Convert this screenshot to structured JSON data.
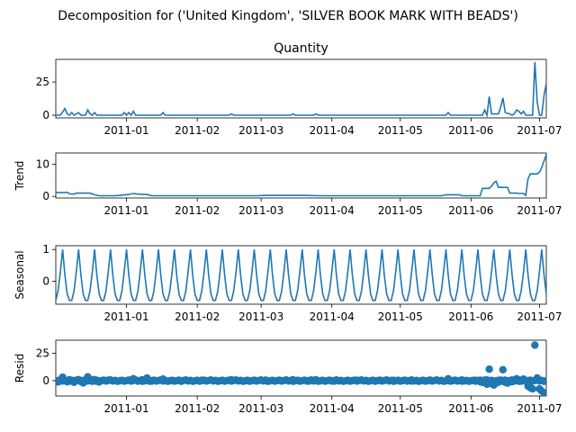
{
  "suptitle": "Decomposition for ('United Kingdom', 'SILVER BOOK MARK WITH BEADS')",
  "line_color": "#1f77b4",
  "x_ticks": [
    "2011-01",
    "2011-02",
    "2011-03",
    "2011-04",
    "2011-05",
    "2011-06",
    "2011-07"
  ],
  "chart_data": [
    {
      "type": "line",
      "title": "Quantity",
      "ylabel": "",
      "yticks": [
        "0",
        "25"
      ],
      "ylim": [
        -2,
        42
      ],
      "x_range": [
        "2010-12-01",
        "2011-07-04"
      ],
      "points": [
        [
          "2010-12-01",
          0
        ],
        [
          "2010-12-03",
          0
        ],
        [
          "2010-12-05",
          5
        ],
        [
          "2010-12-06",
          1
        ],
        [
          "2010-12-07",
          0
        ],
        [
          "2010-12-08",
          2
        ],
        [
          "2010-12-09",
          0
        ],
        [
          "2010-12-11",
          2
        ],
        [
          "2010-12-12",
          0
        ],
        [
          "2010-12-14",
          0
        ],
        [
          "2010-12-15",
          4
        ],
        [
          "2010-12-16",
          1
        ],
        [
          "2010-12-17",
          0
        ],
        [
          "2010-12-18",
          2
        ],
        [
          "2010-12-19",
          0
        ],
        [
          "2010-12-30",
          0
        ],
        [
          "2010-12-31",
          2
        ],
        [
          "2011-01-01",
          0
        ],
        [
          "2011-01-02",
          2
        ],
        [
          "2011-01-03",
          0
        ],
        [
          "2011-01-04",
          3
        ],
        [
          "2011-01-05",
          0
        ],
        [
          "2011-01-16",
          0
        ],
        [
          "2011-01-17",
          2
        ],
        [
          "2011-01-18",
          0
        ],
        [
          "2011-02-15",
          0
        ],
        [
          "2011-02-16",
          1
        ],
        [
          "2011-02-17",
          0
        ],
        [
          "2011-03-14",
          0
        ],
        [
          "2011-03-15",
          1
        ],
        [
          "2011-03-16",
          0
        ],
        [
          "2011-03-24",
          0
        ],
        [
          "2011-03-25",
          1
        ],
        [
          "2011-03-26",
          0
        ],
        [
          "2011-05-21",
          0
        ],
        [
          "2011-05-22",
          2
        ],
        [
          "2011-05-23",
          0
        ],
        [
          "2011-06-06",
          0
        ],
        [
          "2011-06-07",
          4
        ],
        [
          "2011-06-08",
          0
        ],
        [
          "2011-06-09",
          14
        ],
        [
          "2011-06-10",
          1
        ],
        [
          "2011-06-13",
          1
        ],
        [
          "2011-06-14",
          6
        ],
        [
          "2011-06-15",
          13
        ],
        [
          "2011-06-16",
          2
        ],
        [
          "2011-06-18",
          1
        ],
        [
          "2011-06-19",
          0
        ],
        [
          "2011-06-20",
          1
        ],
        [
          "2011-06-21",
          4
        ],
        [
          "2011-06-22",
          3
        ],
        [
          "2011-06-23",
          1
        ],
        [
          "2011-06-24",
          3
        ],
        [
          "2011-06-25",
          0
        ],
        [
          "2011-06-28",
          0
        ],
        [
          "2011-06-29",
          40
        ],
        [
          "2011-06-30",
          10
        ],
        [
          "2011-07-01",
          0
        ],
        [
          "2011-07-02",
          0
        ],
        [
          "2011-07-03",
          15
        ],
        [
          "2011-07-04",
          24
        ]
      ]
    },
    {
      "type": "line",
      "title": "",
      "ylabel": "Trend",
      "yticks": [
        "0",
        "10"
      ],
      "ylim": [
        -0.5,
        13.5
      ],
      "x_range": [
        "2010-12-01",
        "2011-07-04"
      ],
      "points": [
        [
          "2010-12-01",
          1.2
        ],
        [
          "2010-12-05",
          1.2
        ],
        [
          "2010-12-06",
          1.3
        ],
        [
          "2010-12-07",
          0.8
        ],
        [
          "2010-12-09",
          0.7
        ],
        [
          "2010-12-10",
          1.0
        ],
        [
          "2010-12-16",
          1.0
        ],
        [
          "2010-12-18",
          0.5
        ],
        [
          "2010-12-20",
          0.2
        ],
        [
          "2010-12-27",
          0.2
        ],
        [
          "2010-12-30",
          0.4
        ],
        [
          "2011-01-02",
          0.6
        ],
        [
          "2011-01-04",
          0.9
        ],
        [
          "2011-01-06",
          0.7
        ],
        [
          "2011-01-10",
          0.6
        ],
        [
          "2011-01-12",
          0.2
        ],
        [
          "2011-01-19",
          0.2
        ],
        [
          "2011-02-27",
          0.2
        ],
        [
          "2011-03-03",
          0.3
        ],
        [
          "2011-03-20",
          0.3
        ],
        [
          "2011-03-27",
          0.2
        ],
        [
          "2011-05-19",
          0.2
        ],
        [
          "2011-05-21",
          0.5
        ],
        [
          "2011-05-27",
          0.5
        ],
        [
          "2011-05-28",
          0.2
        ],
        [
          "2011-06-05",
          0.2
        ],
        [
          "2011-06-06",
          2.5
        ],
        [
          "2011-06-09",
          2.5
        ],
        [
          "2011-06-10",
          3.2
        ],
        [
          "2011-06-11",
          4.2
        ],
        [
          "2011-06-12",
          4.7
        ],
        [
          "2011-06-13",
          2.8
        ],
        [
          "2011-06-17",
          2.8
        ],
        [
          "2011-06-18",
          1.0
        ],
        [
          "2011-06-21",
          1.0
        ],
        [
          "2011-06-22",
          0.9
        ],
        [
          "2011-06-24",
          0.9
        ],
        [
          "2011-06-25",
          0.3
        ],
        [
          "2011-06-26",
          5.5
        ],
        [
          "2011-06-27",
          7.0
        ],
        [
          "2011-06-30",
          7.0
        ],
        [
          "2011-07-01",
          7.5
        ],
        [
          "2011-07-02",
          9.0
        ],
        [
          "2011-07-04",
          13.0
        ]
      ]
    },
    {
      "type": "line",
      "title": "",
      "ylabel": "Seasonal",
      "yticks": [
        "0",
        "1"
      ],
      "ylim": [
        -0.72,
        1.12
      ],
      "x_range": [
        "2010-12-01",
        "2011-07-04"
      ],
      "period_days": 7,
      "cycle_start": "2010-12-01",
      "cycle_values": [
        -0.6,
        -0.3,
        0.3,
        1.0,
        0.2,
        -0.4,
        -0.6
      ]
    },
    {
      "type": "scatter",
      "title": "",
      "ylabel": "Resid",
      "yticks": [
        "0",
        "25"
      ],
      "ylim": [
        -14,
        37
      ],
      "x_range": [
        "2010-12-01",
        "2011-07-04"
      ],
      "zero_line": true,
      "points": [
        [
          "2010-12-01",
          -0.5
        ],
        [
          "2010-12-02",
          -1.2
        ],
        [
          "2010-12-03",
          -0.2
        ],
        [
          "2010-12-04",
          3.2
        ],
        [
          "2010-12-05",
          0.5
        ],
        [
          "2010-12-06",
          -1.0
        ],
        [
          "2010-12-07",
          0.8
        ],
        [
          "2010-12-08",
          -0.5
        ],
        [
          "2010-12-09",
          -1.5
        ],
        [
          "2010-12-10",
          0.4
        ],
        [
          "2010-12-11",
          1.0
        ],
        [
          "2010-12-12",
          -0.8
        ],
        [
          "2010-12-13",
          -2.0
        ],
        [
          "2010-12-14",
          -0.6
        ],
        [
          "2010-12-15",
          3.5
        ],
        [
          "2010-12-16",
          1.2
        ],
        [
          "2010-12-17",
          -0.4
        ],
        [
          "2010-12-18",
          0.9
        ],
        [
          "2010-12-19",
          -0.6
        ],
        [
          "2010-12-20",
          -1.2
        ],
        [
          "2010-12-24",
          0.5
        ],
        [
          "2010-12-28",
          -0.5
        ],
        [
          "2011-01-02",
          0.5
        ],
        [
          "2011-01-04",
          1.8
        ],
        [
          "2011-01-06",
          -0.5
        ],
        [
          "2011-01-08",
          0.8
        ],
        [
          "2011-01-10",
          2.5
        ],
        [
          "2011-01-12",
          -0.5
        ],
        [
          "2011-01-17",
          1.5
        ],
        [
          "2011-01-25",
          -0.6
        ],
        [
          "2011-02-03",
          0.4
        ],
        [
          "2011-02-10",
          -0.4
        ],
        [
          "2011-02-16",
          0.8
        ],
        [
          "2011-02-24",
          -0.5
        ],
        [
          "2011-03-03",
          0.5
        ],
        [
          "2011-03-10",
          -0.3
        ],
        [
          "2011-03-15",
          0.8
        ],
        [
          "2011-03-22",
          -0.4
        ],
        [
          "2011-03-25",
          0.8
        ],
        [
          "2011-04-02",
          -0.5
        ],
        [
          "2011-04-12",
          0.3
        ],
        [
          "2011-04-20",
          -0.4
        ],
        [
          "2011-04-28",
          0.3
        ],
        [
          "2011-05-06",
          -0.3
        ],
        [
          "2011-05-14",
          0.4
        ],
        [
          "2011-05-22",
          1.8
        ],
        [
          "2011-05-28",
          -0.5
        ],
        [
          "2011-06-03",
          0.3
        ],
        [
          "2011-06-05",
          -1.0
        ],
        [
          "2011-06-06",
          -1.5
        ],
        [
          "2011-06-07",
          0.5
        ],
        [
          "2011-06-08",
          -3.2
        ],
        [
          "2011-06-09",
          10.5
        ],
        [
          "2011-06-10",
          -2.5
        ],
        [
          "2011-06-11",
          -4.0
        ],
        [
          "2011-06-12",
          -2.0
        ],
        [
          "2011-06-13",
          -1.5
        ],
        [
          "2011-06-14",
          0.5
        ],
        [
          "2011-06-15",
          10.0
        ],
        [
          "2011-06-16",
          -1.5
        ],
        [
          "2011-06-17",
          -2.2
        ],
        [
          "2011-06-18",
          -0.5
        ],
        [
          "2011-06-19",
          -1.0
        ],
        [
          "2011-06-20",
          0.2
        ],
        [
          "2011-06-21",
          1.8
        ],
        [
          "2011-06-22",
          0.5
        ],
        [
          "2011-06-23",
          -0.5
        ],
        [
          "2011-06-24",
          1.5
        ],
        [
          "2011-06-25",
          -0.6
        ],
        [
          "2011-06-26",
          -5.0
        ],
        [
          "2011-06-27",
          -6.5
        ],
        [
          "2011-06-28",
          -7.5
        ],
        [
          "2011-06-29",
          32.5
        ],
        [
          "2011-06-30",
          2.5
        ],
        [
          "2011-07-01",
          -7.5
        ],
        [
          "2011-07-02",
          -9.5
        ],
        [
          "2011-07-03",
          -11.0
        ],
        [
          "2011-07-04",
          -12.0
        ]
      ]
    }
  ]
}
